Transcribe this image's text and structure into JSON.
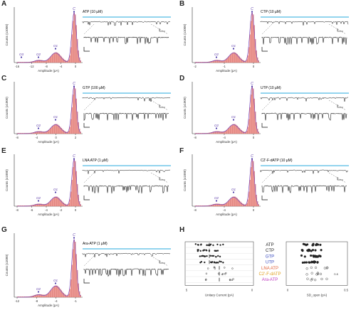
{
  "panels": [
    {
      "id": "A",
      "label": "A",
      "title": "ATP (10 µM)",
      "xlabel": "Amplitude (pA)",
      "ylabel": "Counts (x1000)",
      "xticks": [
        "-16",
        "-12",
        "-8",
        "-4",
        "0"
      ],
      "peaks": [
        "O3",
        "O2",
        "O1",
        "C"
      ]
    },
    {
      "id": "B",
      "label": "B",
      "title": "CTP (10 µM)",
      "xlabel": "Amplitude (pA)",
      "ylabel": "Counts (x1000)",
      "xticks": [
        "-2",
        "-1",
        "0"
      ],
      "peaks": [
        "O2",
        "O1",
        "C"
      ]
    },
    {
      "id": "C",
      "label": "C",
      "title": "GTP (100 µM)",
      "xlabel": "Amplitude (pA)",
      "ylabel": "Counts (x1000)",
      "xticks": [
        "-8",
        "-4",
        "0",
        "2"
      ],
      "peaks": [
        "O2",
        "O1",
        "C"
      ]
    },
    {
      "id": "D",
      "label": "D",
      "title": "UTP (10 µM)",
      "xlabel": "Amplitude (pA)",
      "ylabel": "Counts (x1000)",
      "xticks": [
        "-8",
        "-4",
        "0"
      ],
      "peaks": [
        "O2",
        "O1",
        "C"
      ]
    },
    {
      "id": "E",
      "label": "E",
      "title": "LNA ATP (1 µM)",
      "xlabel": "Amplitude (pA)",
      "ylabel": "Counts (x1000)",
      "xticks": [
        "-8",
        "-6",
        "-4",
        "-2",
        "0"
      ],
      "peaks": [
        "O2",
        "O1",
        "C"
      ]
    },
    {
      "id": "F",
      "label": "F",
      "title": "C2'-F-dATP (10 µM)",
      "xlabel": "Amplitude (pA)",
      "ylabel": "Counts (x1000)",
      "xticks": [
        "-8",
        "-4",
        "0"
      ],
      "peaks": [
        "O2",
        "O1",
        "C"
      ]
    },
    {
      "id": "G",
      "label": "G",
      "title": "Ara-ATP (1 µM)",
      "xlabel": "Amplitude (pA)",
      "ylabel": "Counts (x1000)",
      "xticks": [
        "-12",
        "-8",
        "-4",
        "-1"
      ],
      "peaks": [
        "O2",
        "O1",
        "C"
      ]
    }
  ],
  "panelH": {
    "label": "H",
    "rows": [
      {
        "name": "ATP",
        "color": "#222222"
      },
      {
        "name": "CTP",
        "color": "#222222"
      },
      {
        "name": "GTP",
        "color": "#3b4cc0"
      },
      {
        "name": "UTP",
        "color": "#3b4cc0"
      },
      {
        "name": "LNA ATP",
        "color": "#e0603a"
      },
      {
        "name": "C2'-F-dATP",
        "color": "#e0a020"
      },
      {
        "name": "Ara-ATP",
        "color": "#c040c0"
      }
    ],
    "left_xlabel": "Unitary Current (pA)",
    "left_xticks": [
      "5",
      "0"
    ],
    "right_xlabel": "SD_open (pA)",
    "right_xticks": [
      "0",
      "0.5"
    ],
    "ns_label": "n.s"
  }
}
